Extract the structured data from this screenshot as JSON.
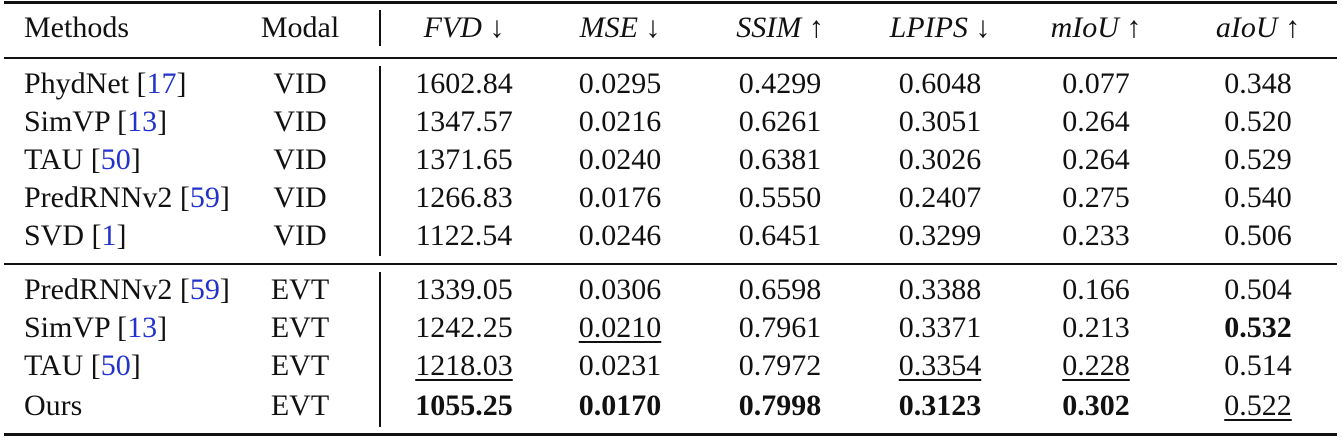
{
  "header": {
    "methods": "Methods",
    "modal": "Modal",
    "fvd": "FVD ↓",
    "mse": "MSE ↓",
    "ssim": "SSIM ↑",
    "lpips": "LPIPS ↓",
    "miou": "mIoU ↑",
    "aiou": "aIoU ↑"
  },
  "rows": [
    {
      "name": "PhydNet [",
      "ref": "17",
      "close": "]",
      "modal": "VID",
      "fvd": "1602.84",
      "mse": "0.0295",
      "ssim": "0.4299",
      "lpips": "0.6048",
      "miou": "0.077",
      "aiou": "0.348"
    },
    {
      "name": "SimVP [",
      "ref": "13",
      "close": "]",
      "modal": "VID",
      "fvd": "1347.57",
      "mse": "0.0216",
      "ssim": "0.6261",
      "lpips": "0.3051",
      "miou": "0.264",
      "aiou": "0.520"
    },
    {
      "name": "TAU [",
      "ref": "50",
      "close": "]",
      "modal": "VID",
      "fvd": "1371.65",
      "mse": "0.0240",
      "ssim": "0.6381",
      "lpips": "0.3026",
      "miou": "0.264",
      "aiou": "0.529"
    },
    {
      "name": "PredRNNv2 [",
      "ref": "59",
      "close": "]",
      "modal": "VID",
      "fvd": "1266.83",
      "mse": "0.0176",
      "ssim": "0.5550",
      "lpips": "0.2407",
      "miou": "0.275",
      "aiou": "0.540"
    },
    {
      "name": "SVD [",
      "ref": "1",
      "close": "]",
      "modal": "VID",
      "fvd": "1122.54",
      "mse": "0.0246",
      "ssim": "0.6451",
      "lpips": "0.3299",
      "miou": "0.233",
      "aiou": "0.506"
    },
    {
      "name": "PredRNNv2 [",
      "ref": "59",
      "close": "]",
      "modal": "EVT",
      "fvd": "1339.05",
      "mse": "0.0306",
      "ssim": "0.6598",
      "lpips": "0.3388",
      "miou": "0.166",
      "aiou": "0.504"
    },
    {
      "name": "SimVP [",
      "ref": "13",
      "close": "]",
      "modal": "EVT",
      "fvd": "1242.25",
      "mse": "0.0210",
      "ssim": "0.7961",
      "lpips": "0.3371",
      "miou": "0.213",
      "aiou": "0.532"
    },
    {
      "name": "TAU [",
      "ref": "50",
      "close": "]",
      "modal": "EVT",
      "fvd": "1218.03",
      "mse": "0.0231",
      "ssim": "0.7972",
      "lpips": "0.3354",
      "miou": "0.228",
      "aiou": "0.514"
    },
    {
      "name": "Ours",
      "ref": "",
      "close": "",
      "modal": "EVT",
      "fvd": "1055.25",
      "mse": "0.0170",
      "ssim": "0.7998",
      "lpips": "0.3123",
      "miou": "0.302",
      "aiou": "0.522"
    }
  ]
}
